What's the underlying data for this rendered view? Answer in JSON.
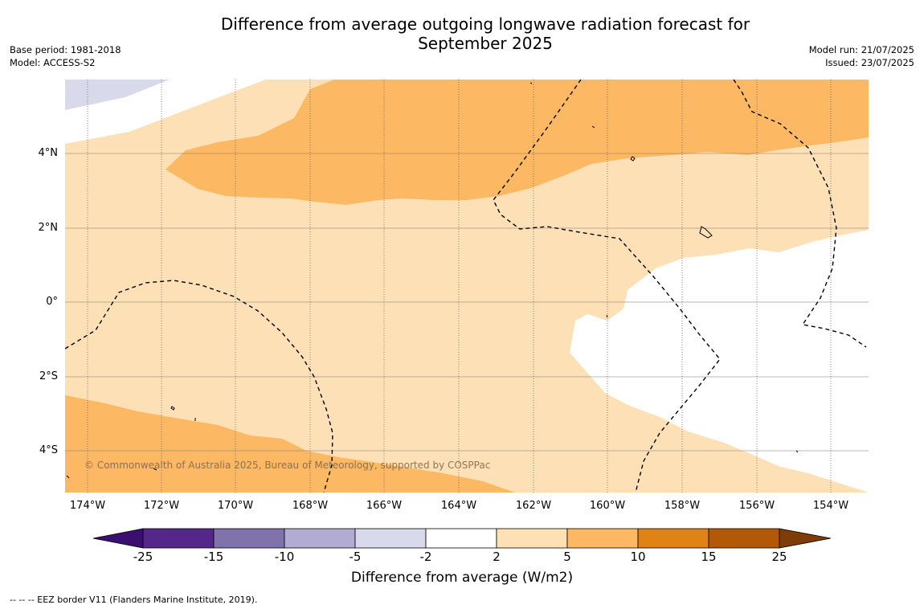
{
  "title_line1": "Difference from average outgoing longwave radiation forecast for",
  "title_line2": "September 2025",
  "meta_left": {
    "base_period": "Base period: 1981-2018",
    "model": "Model: ACCESS-S2"
  },
  "meta_right": {
    "model_run": "Model run: 21/07/2025",
    "issued": "Issued: 23/07/2025"
  },
  "latitude_labels": [
    "4°N",
    "2°N",
    "0°",
    "2°S",
    "4°S"
  ],
  "longitude_labels": [
    "174°W",
    "172°W",
    "170°W",
    "168°W",
    "166°W",
    "164°W",
    "162°W",
    "160°W",
    "158°W",
    "156°W",
    "154°W"
  ],
  "copyright": "© Commonwealth of Australia 2025, Bureau of Meteorology, supported by COSPPac",
  "colorbar": {
    "ticks": [
      "-25",
      "-15",
      "-10",
      "-5",
      "-2",
      "2",
      "5",
      "10",
      "15",
      "25"
    ],
    "colors": [
      "#3b0f6f",
      "#542788",
      "#8073ac",
      "#b2abd2",
      "#d8daeb",
      "#ffffff",
      "#fee0b6",
      "#fdb863",
      "#e08214",
      "#b35806",
      "#7f3b08"
    ],
    "title": "Difference from average (W/m2)"
  },
  "footer": "--  --  -- EEZ border V11 (Flanders Marine Institute, 2019)."
}
